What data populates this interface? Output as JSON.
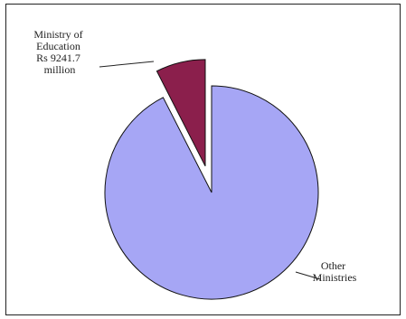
{
  "chart_data": {
    "type": "pie",
    "title": "",
    "slices": [
      {
        "label_lines": [
          "Ministry of",
          "Education",
          "Rs 9241.7",
          "million"
        ],
        "value": 7.5,
        "color": "#8b1f4c",
        "exploded": true
      },
      {
        "label_lines": [
          "Other",
          "Ministries"
        ],
        "value": 92.5,
        "color": "#a6a6f5",
        "exploded": false
      }
    ]
  }
}
